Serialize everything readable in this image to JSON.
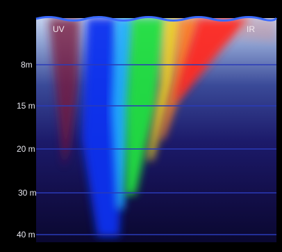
{
  "labels": {
    "uv": "UV",
    "ir": "IR"
  },
  "depth_markers": [
    {
      "label": "8m",
      "depth_m": 8
    },
    {
      "label": "15 m",
      "depth_m": 15
    },
    {
      "label": "20 m",
      "depth_m": 20
    },
    {
      "label": "30 m",
      "depth_m": 30
    },
    {
      "label": "40 m",
      "depth_m": 40
    }
  ],
  "colors": {
    "background": "#000000",
    "water_surface": "#b8c8e8",
    "water_deep": "#0a0830",
    "depth_line": "#2a3ab8",
    "spectrum": [
      "#8a1030",
      "#1020e0",
      "#10a0ff",
      "#20e040",
      "#f0c020",
      "#ff4020",
      "#e02020"
    ]
  }
}
